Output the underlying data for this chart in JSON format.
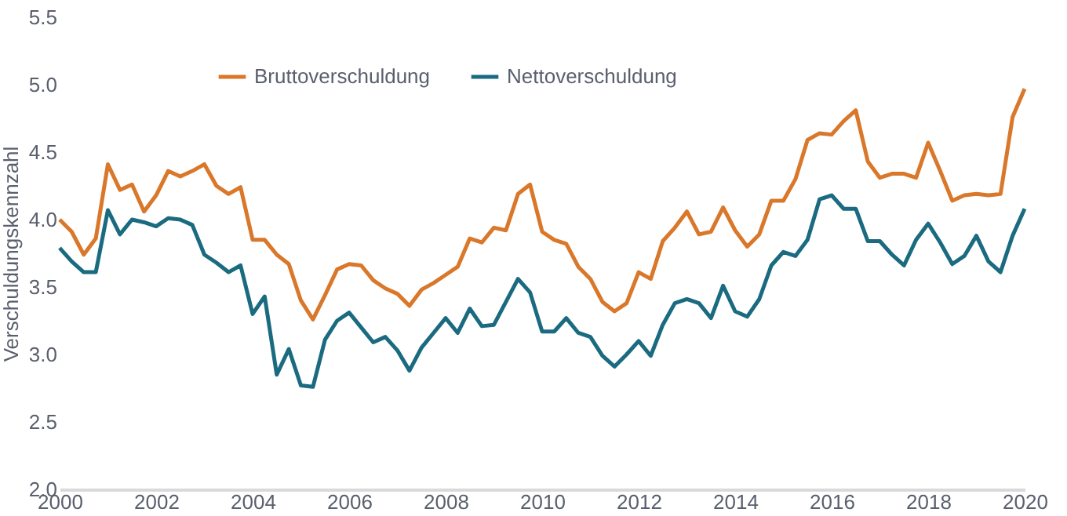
{
  "chart_data": {
    "type": "line",
    "ylabel": "Verschuldungskennzahl",
    "xlim": [
      2000,
      2020
    ],
    "xticks": [
      2000,
      2002,
      2004,
      2006,
      2008,
      2010,
      2012,
      2014,
      2016,
      2018,
      2020
    ],
    "ylim": [
      2.0,
      5.5
    ],
    "yticks": [
      {
        "value": 2,
        "label": "2.0"
      },
      2.5,
      {
        "value": 3,
        "label": "3.0"
      },
      3.5,
      {
        "value": 4,
        "label": "4.0"
      },
      4.5,
      {
        "value": 5,
        "label": "5.0"
      },
      5.5
    ],
    "grid": false,
    "legend": "top left",
    "marker": "none",
    "line_style": "solid",
    "x": [
      2000,
      2000.25,
      2000.5,
      2000.75,
      2001,
      2001.25,
      2001.5,
      2001.75,
      2002,
      2002.25,
      2002.5,
      2002.75,
      2003,
      2003.25,
      2003.5,
      2003.75,
      2004,
      2004.25,
      2004.5,
      2004.75,
      2005,
      2005.25,
      2005.5,
      2005.75,
      2006,
      2006.25,
      2006.5,
      2006.75,
      2007,
      2007.25,
      2007.5,
      2007.75,
      2008,
      2008.25,
      2008.5,
      2008.75,
      2009,
      2009.25,
      2009.5,
      2009.75,
      2010,
      2010.25,
      2010.5,
      2010.75,
      2011,
      2011.25,
      2011.5,
      2011.75,
      2012,
      2012.25,
      2012.5,
      2012.75,
      2013,
      2013.25,
      2013.5,
      2013.75,
      2014,
      2014.25,
      2014.5,
      2014.75,
      2015,
      2015.25,
      2015.5,
      2015.75,
      2016,
      2016.25,
      2016.5,
      2016.75,
      2017,
      2017.25,
      2017.5,
      2017.75,
      2018,
      2018.25,
      2018.5,
      2018.75,
      2019,
      2019.25,
      2019.5,
      2019.75,
      2020
    ],
    "series": [
      {
        "name": "Bruttoverschuldung",
        "color": "#d9782b",
        "values": [
          4.0,
          3.91,
          3.74,
          3.86,
          4.41,
          4.22,
          4.26,
          4.06,
          4.18,
          4.36,
          4.32,
          4.36,
          4.41,
          4.25,
          4.19,
          4.24,
          3.85,
          3.85,
          3.74,
          3.67,
          3.4,
          3.26,
          3.44,
          3.63,
          3.67,
          3.66,
          3.55,
          3.49,
          3.45,
          3.36,
          3.48,
          3.53,
          3.59,
          3.65,
          3.86,
          3.83,
          3.94,
          3.92,
          4.19,
          4.26,
          3.91,
          3.85,
          3.82,
          3.65,
          3.56,
          3.39,
          3.32,
          3.38,
          3.61,
          3.56,
          3.84,
          3.94,
          4.06,
          3.89,
          3.91,
          4.09,
          3.92,
          3.8,
          3.89,
          4.14,
          4.14,
          4.3,
          4.59,
          4.64,
          4.63,
          4.73,
          4.81,
          4.43,
          4.31,
          4.34,
          4.34,
          4.31,
          4.57,
          4.36,
          4.14,
          4.18,
          4.19,
          4.18,
          4.19,
          4.76,
          4.97
        ]
      },
      {
        "name": "Nettoverschuldung",
        "color": "#1b6b80",
        "values": [
          3.79,
          3.69,
          3.61,
          3.61,
          4.07,
          3.89,
          4.0,
          3.98,
          3.95,
          4.01,
          4.0,
          3.96,
          3.74,
          3.68,
          3.61,
          3.66,
          3.3,
          3.43,
          2.85,
          3.04,
          2.77,
          2.76,
          3.11,
          3.25,
          3.31,
          3.2,
          3.09,
          3.13,
          3.03,
          2.88,
          3.05,
          3.16,
          3.27,
          3.16,
          3.34,
          3.21,
          3.22,
          3.39,
          3.56,
          3.46,
          3.17,
          3.17,
          3.27,
          3.16,
          3.13,
          2.99,
          2.91,
          3.0,
          3.1,
          2.99,
          3.22,
          3.38,
          3.41,
          3.38,
          3.27,
          3.51,
          3.32,
          3.28,
          3.41,
          3.66,
          3.76,
          3.73,
          3.85,
          4.15,
          4.18,
          4.08,
          4.08,
          3.84,
          3.84,
          3.74,
          3.66,
          3.85,
          3.97,
          3.83,
          3.67,
          3.73,
          3.88,
          3.69,
          3.61,
          3.88,
          4.08
        ]
      }
    ]
  }
}
